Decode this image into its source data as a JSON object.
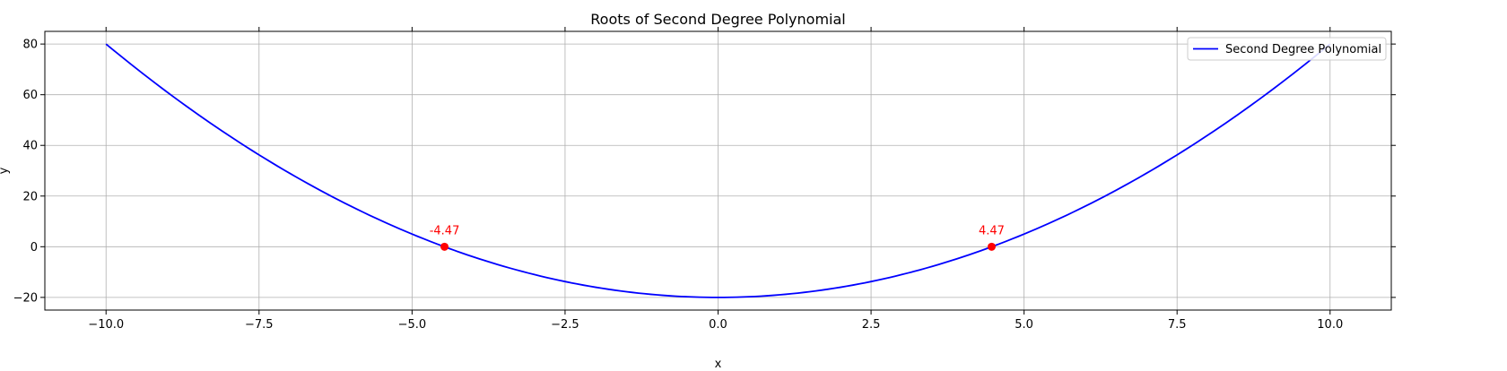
{
  "chart_data": {
    "type": "line",
    "title": "Roots of Second Degree Polynomial",
    "xlabel": "x",
    "ylabel": "y",
    "xlim": [
      -11,
      11
    ],
    "ylim": [
      -25,
      85
    ],
    "x_ticks": [
      -10.0,
      -7.5,
      -5.0,
      -2.5,
      0.0,
      2.5,
      5.0,
      7.5,
      10.0
    ],
    "x_tick_labels": [
      "−10.0",
      "−7.5",
      "−5.0",
      "−2.5",
      "0.0",
      "2.5",
      "5.0",
      "7.5",
      "10.0"
    ],
    "y_ticks": [
      -20,
      0,
      20,
      40,
      60,
      80
    ],
    "y_tick_labels": [
      "−20",
      "0",
      "20",
      "40",
      "60",
      "80"
    ],
    "grid": true,
    "legend_position": "top-right",
    "series": [
      {
        "name": "Second Degree Polynomial",
        "color": "#0000ff",
        "function": "y = x^2 - 20",
        "x_range": [
          -10,
          10
        ],
        "x": [
          -10,
          -9,
          -8,
          -7,
          -6,
          -5,
          -4,
          -3,
          -2,
          -1,
          0,
          1,
          2,
          3,
          4,
          5,
          6,
          7,
          8,
          9,
          10
        ],
        "y": [
          80,
          61,
          44,
          29,
          16,
          5,
          -4,
          -11,
          -16,
          -19,
          -20,
          -19,
          -16,
          -11,
          -4,
          5,
          16,
          29,
          44,
          61,
          80
        ]
      }
    ],
    "roots": [
      {
        "x": -4.47,
        "y": 0,
        "label": "-4.47"
      },
      {
        "x": 4.47,
        "y": 0,
        "label": "4.47"
      }
    ],
    "root_color": "#ff0000"
  }
}
